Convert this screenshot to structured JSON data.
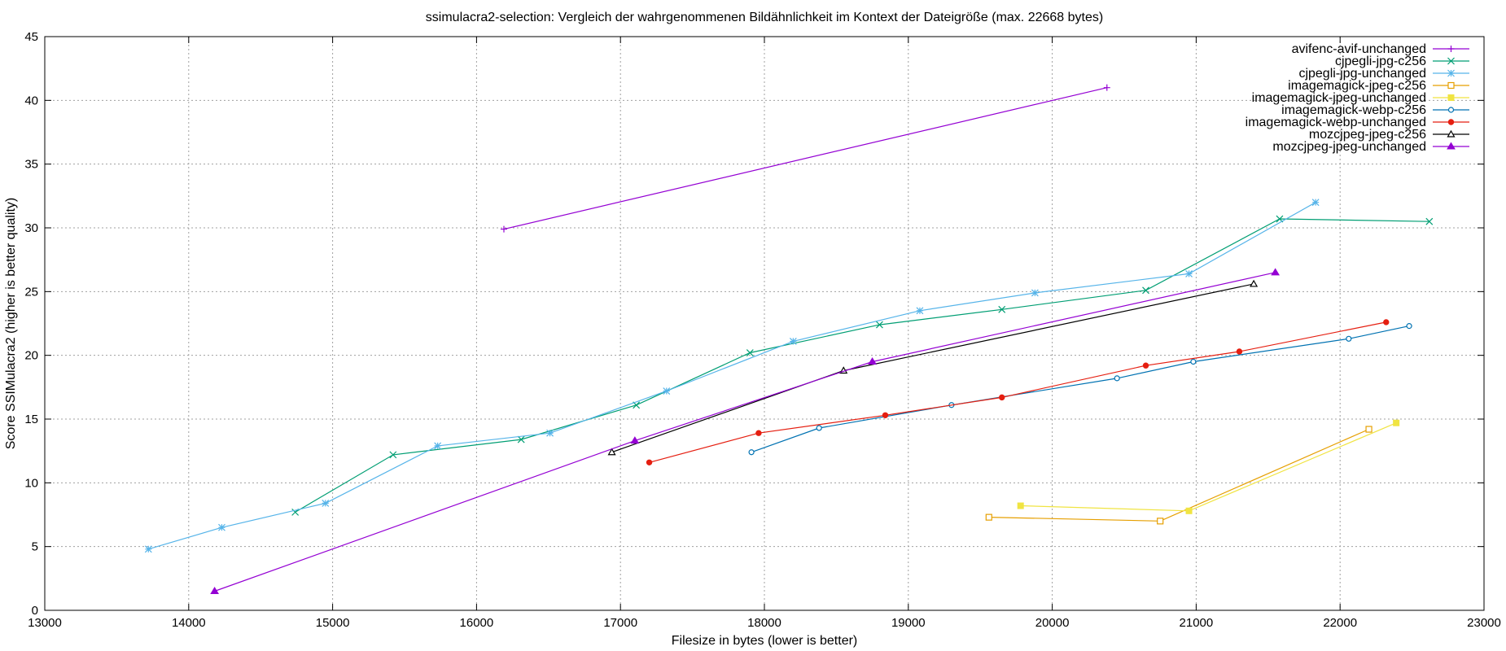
{
  "chart_data": {
    "type": "line",
    "title": "ssimulacra2-selection: Vergleich der wahrgenommenen Bildähnlichkeit im Kontext der Dateigröße (max. 22668 bytes)",
    "xlabel": "Filesize in bytes (lower is better)",
    "ylabel": "Score SSIMulacra2 (higher is better quality)",
    "xlim": [
      13000,
      23000
    ],
    "ylim": [
      0,
      45
    ],
    "xticks": [
      13000,
      14000,
      15000,
      16000,
      17000,
      18000,
      19000,
      20000,
      21000,
      22000,
      23000
    ],
    "yticks": [
      0,
      5,
      10,
      15,
      20,
      25,
      30,
      35,
      40,
      45
    ],
    "grid": true,
    "legend_position": "top-right",
    "series": [
      {
        "name": "avifenc-avif-unchanged",
        "color": "#9400d3",
        "marker": "plus",
        "points": [
          [
            16190,
            29.9
          ],
          [
            20380,
            41.0
          ]
        ]
      },
      {
        "name": "cjpegli-jpg-c256",
        "color": "#009e73",
        "marker": "cross",
        "points": [
          [
            14740,
            7.7
          ],
          [
            15420,
            12.2
          ],
          [
            16310,
            13.4
          ],
          [
            17110,
            16.1
          ],
          [
            17900,
            20.2
          ],
          [
            18800,
            22.4
          ],
          [
            19650,
            23.6
          ],
          [
            20650,
            25.1
          ],
          [
            21580,
            30.7
          ],
          [
            22620,
            30.5
          ]
        ]
      },
      {
        "name": "cjpegli-jpg-unchanged",
        "color": "#56b4e9",
        "marker": "star",
        "points": [
          [
            13720,
            4.8
          ],
          [
            14230,
            6.5
          ],
          [
            14950,
            8.4
          ],
          [
            15730,
            12.9
          ],
          [
            16510,
            13.9
          ],
          [
            17320,
            17.2
          ],
          [
            18200,
            21.1
          ],
          [
            19080,
            23.5
          ],
          [
            19880,
            24.9
          ],
          [
            20950,
            26.4
          ],
          [
            21830,
            32.0
          ]
        ]
      },
      {
        "name": "imagemagick-jpeg-c256",
        "color": "#e69f00",
        "marker": "square-open",
        "points": [
          [
            19560,
            7.3
          ],
          [
            20750,
            7.0
          ],
          [
            22200,
            14.2
          ]
        ]
      },
      {
        "name": "imagemagick-jpeg-unchanged",
        "color": "#f0e442",
        "marker": "square-filled",
        "points": [
          [
            19780,
            8.2
          ],
          [
            20950,
            7.8
          ],
          [
            22390,
            14.7
          ]
        ]
      },
      {
        "name": "imagemagick-webp-c256",
        "color": "#0072b2",
        "marker": "circle-open",
        "points": [
          [
            17910,
            12.4
          ],
          [
            18380,
            14.3
          ],
          [
            19300,
            16.1
          ],
          [
            20450,
            18.2
          ],
          [
            20980,
            19.5
          ],
          [
            22060,
            21.3
          ],
          [
            22480,
            22.3
          ]
        ]
      },
      {
        "name": "imagemagick-webp-unchanged",
        "color": "#e51e10",
        "marker": "circle-filled",
        "points": [
          [
            17200,
            11.6
          ],
          [
            17960,
            13.9
          ],
          [
            18840,
            15.3
          ],
          [
            19650,
            16.7
          ],
          [
            20650,
            19.2
          ],
          [
            21300,
            20.3
          ],
          [
            22320,
            22.6
          ]
        ]
      },
      {
        "name": "mozcjpeg-jpeg-c256",
        "color": "#000000",
        "marker": "triangle-open",
        "points": [
          [
            16940,
            12.4
          ],
          [
            18550,
            18.8
          ],
          [
            21400,
            25.6
          ]
        ]
      },
      {
        "name": "mozcjpeg-jpeg-unchanged",
        "color": "#9400d3",
        "marker": "triangle-filled",
        "points": [
          [
            14180,
            1.5
          ],
          [
            17100,
            13.3
          ],
          [
            18750,
            19.5
          ],
          [
            21550,
            26.5
          ]
        ]
      }
    ]
  }
}
